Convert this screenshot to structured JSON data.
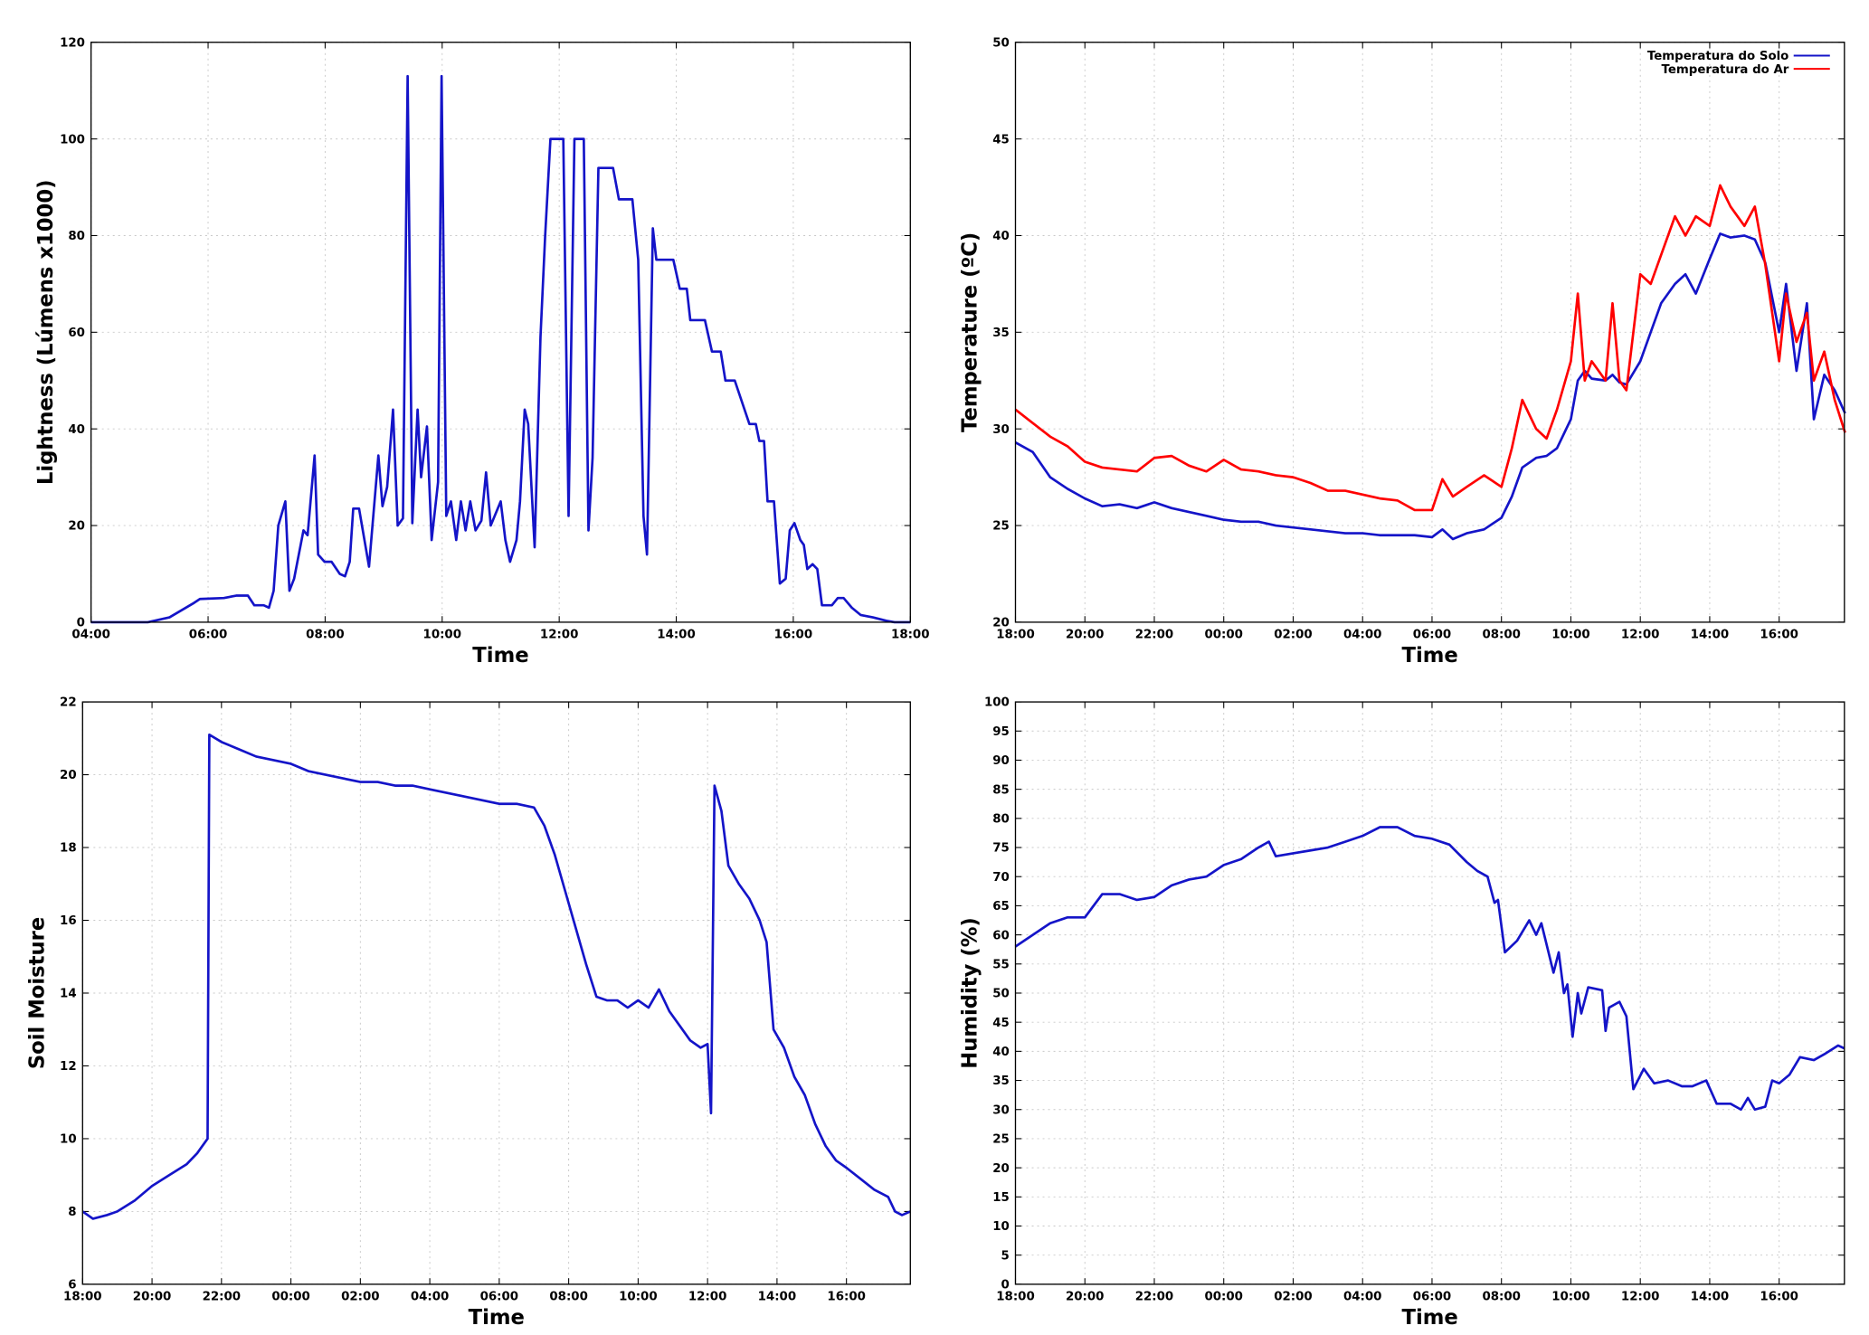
{
  "chart_data": [
    {
      "type": "line",
      "xlabel": "Time",
      "ylabel": "Lightness (Lúmens x1000)",
      "grid": true,
      "xlim": [
        4,
        18
      ],
      "ylim": [
        0,
        120
      ],
      "xticks": [
        {
          "value": 4,
          "label": "04:00"
        },
        {
          "value": 6,
          "label": "06:00"
        },
        {
          "value": 8,
          "label": "08:00"
        },
        {
          "value": 10,
          "label": "10:00"
        },
        {
          "value": 12,
          "label": "12:00"
        },
        {
          "value": 14,
          "label": "14:00"
        },
        {
          "value": 16,
          "label": "16:00"
        },
        {
          "value": 18,
          "label": "18:00"
        }
      ],
      "yticks": [
        0,
        20,
        40,
        60,
        80,
        100,
        120
      ],
      "x": [
        4.0,
        4.97,
        5.34,
        5.55,
        5.76,
        5.86,
        6.27,
        6.48,
        6.68,
        6.79,
        6.95,
        7.04,
        7.12,
        7.2,
        7.32,
        7.39,
        7.47,
        7.63,
        7.7,
        7.82,
        7.88,
        7.99,
        8.11,
        8.25,
        8.34,
        8.42,
        8.48,
        8.58,
        8.75,
        8.91,
        8.98,
        9.06,
        9.16,
        9.24,
        9.33,
        9.41,
        9.49,
        9.58,
        9.64,
        9.74,
        9.82,
        9.93,
        9.99,
        10.07,
        10.15,
        10.24,
        10.32,
        10.4,
        10.48,
        10.57,
        10.67,
        10.75,
        10.83,
        11.0,
        11.08,
        11.16,
        11.27,
        11.33,
        11.41,
        11.47,
        11.58,
        11.68,
        11.76,
        11.85,
        12.07,
        12.16,
        12.26,
        12.42,
        12.5,
        12.57,
        12.67,
        12.92,
        13.02,
        13.25,
        13.35,
        13.44,
        13.5,
        13.6,
        13.66,
        13.95,
        14.06,
        14.18,
        14.24,
        14.49,
        14.61,
        14.76,
        14.84,
        15.0,
        15.25,
        15.36,
        15.42,
        15.5,
        15.56,
        15.67,
        15.77,
        15.87,
        15.94,
        16.02,
        16.12,
        16.18,
        16.24,
        16.33,
        16.41,
        16.49,
        16.66,
        16.76,
        16.86,
        17.0,
        17.15,
        17.36,
        17.59,
        17.73,
        18.0
      ],
      "series": [
        {
          "color": "#1414c8",
          "values": [
            0,
            0,
            1,
            2.5,
            4,
            4.8,
            5,
            5.5,
            5.5,
            3.5,
            3.5,
            3,
            6.5,
            20,
            25,
            6.5,
            9,
            19,
            18,
            34.5,
            14,
            12.5,
            12.5,
            10,
            9.5,
            12.5,
            23.5,
            23.5,
            11.5,
            34.5,
            24,
            28,
            44,
            20,
            21.5,
            113,
            20.5,
            44,
            30,
            40.5,
            17,
            29,
            113,
            22,
            25,
            17,
            25,
            19,
            25,
            19,
            21,
            31,
            20,
            25,
            17,
            12.5,
            17,
            25,
            44,
            41,
            15.5,
            59,
            80,
            100,
            100,
            22,
            100,
            100,
            19,
            34,
            94,
            94,
            87.5,
            87.5,
            75,
            22,
            14,
            81.5,
            75,
            75,
            69,
            69,
            62.5,
            62.5,
            56,
            56,
            50,
            50,
            41,
            41,
            37.5,
            37.5,
            25,
            25,
            8,
            9,
            19,
            20.5,
            17,
            16,
            11,
            12,
            11,
            3.5,
            3.5,
            5,
            5,
            3,
            1.5,
            1,
            0.3,
            0,
            0
          ]
        }
      ]
    },
    {
      "type": "line",
      "xlabel": "Time",
      "ylabel": "Temperature (ºC)",
      "grid": true,
      "legend": "upper right",
      "xlim": [
        18,
        41.88
      ],
      "ylim": [
        20,
        50
      ],
      "xticks": [
        {
          "value": 18,
          "label": "18:00"
        },
        {
          "value": 20,
          "label": "20:00"
        },
        {
          "value": 22,
          "label": "22:00"
        },
        {
          "value": 24,
          "label": "00:00"
        },
        {
          "value": 26,
          "label": "02:00"
        },
        {
          "value": 28,
          "label": "04:00"
        },
        {
          "value": 30,
          "label": "06:00"
        },
        {
          "value": 32,
          "label": "08:00"
        },
        {
          "value": 34,
          "label": "10:00"
        },
        {
          "value": 36,
          "label": "12:00"
        },
        {
          "value": 38,
          "label": "14:00"
        },
        {
          "value": 40,
          "label": "16:00"
        }
      ],
      "yticks": [
        20,
        25,
        30,
        35,
        40,
        45,
        50
      ],
      "x": [
        18,
        18.5,
        19,
        19.5,
        20,
        20.5,
        21,
        21.5,
        22,
        22.5,
        23,
        23.5,
        24,
        24.5,
        25,
        25.5,
        26,
        26.5,
        27,
        27.5,
        28,
        28.5,
        29,
        29.5,
        30,
        30.3,
        30.6,
        31,
        31.5,
        32,
        32.3,
        32.6,
        33,
        33.3,
        33.6,
        34,
        34.2,
        34.4,
        34.6,
        35,
        35.2,
        35.4,
        35.6,
        36,
        36.3,
        36.6,
        37,
        37.3,
        37.6,
        38,
        38.3,
        38.6,
        39,
        39.3,
        39.6,
        40,
        40.2,
        40.5,
        40.8,
        41,
        41.3,
        41.6,
        41.9
      ],
      "series": [
        {
          "name": "Temperatura do Solo",
          "color": "#1414c8",
          "values": [
            29.3,
            28.8,
            27.5,
            26.9,
            26.4,
            26.0,
            26.1,
            25.9,
            26.2,
            25.9,
            25.7,
            25.5,
            25.3,
            25.2,
            25.2,
            25.0,
            24.9,
            24.8,
            24.7,
            24.6,
            24.6,
            24.5,
            24.5,
            24.5,
            24.4,
            24.8,
            24.3,
            24.6,
            24.8,
            25.4,
            26.5,
            28.0,
            28.5,
            28.6,
            29.0,
            30.5,
            32.5,
            33.0,
            32.6,
            32.5,
            32.8,
            32.4,
            32.3,
            33.5,
            35.0,
            36.5,
            37.5,
            38.0,
            37.0,
            38.8,
            40.1,
            39.9,
            40.0,
            39.8,
            38.6,
            35.0,
            37.5,
            33.0,
            36.5,
            30.5,
            32.8,
            32.0,
            30.8
          ]
        },
        {
          "name": "Temperatura do Ar",
          "color": "#ff0000",
          "values": [
            31.0,
            30.3,
            29.6,
            29.1,
            28.3,
            28.0,
            27.9,
            27.8,
            28.5,
            28.6,
            28.1,
            27.8,
            28.4,
            27.9,
            27.8,
            27.6,
            27.5,
            27.2,
            26.8,
            26.8,
            26.6,
            26.4,
            26.3,
            25.8,
            25.8,
            27.4,
            26.5,
            27.0,
            27.6,
            27.0,
            29.0,
            31.5,
            30.0,
            29.5,
            31.0,
            33.5,
            37.0,
            32.5,
            33.5,
            32.5,
            36.5,
            32.5,
            32.0,
            38.0,
            37.5,
            39.0,
            41.0,
            40.0,
            41.0,
            40.5,
            42.6,
            41.5,
            40.5,
            41.5,
            38.5,
            33.5,
            37.0,
            34.5,
            36.0,
            32.5,
            34.0,
            31.5,
            29.8
          ]
        }
      ]
    },
    {
      "type": "line",
      "xlabel": "Time",
      "ylabel": "Soil Moisture",
      "grid": true,
      "xlim": [
        18,
        41.84
      ],
      "ylim": [
        6,
        22
      ],
      "xticks": [
        {
          "value": 18,
          "label": "18:00"
        },
        {
          "value": 20,
          "label": "20:00"
        },
        {
          "value": 22,
          "label": "22:00"
        },
        {
          "value": 24,
          "label": "00:00"
        },
        {
          "value": 26,
          "label": "02:00"
        },
        {
          "value": 28,
          "label": "04:00"
        },
        {
          "value": 30,
          "label": "06:00"
        },
        {
          "value": 32,
          "label": "08:00"
        },
        {
          "value": 34,
          "label": "10:00"
        },
        {
          "value": 36,
          "label": "12:00"
        },
        {
          "value": 38,
          "label": "14:00"
        },
        {
          "value": 40,
          "label": "16:00"
        }
      ],
      "yticks": [
        6,
        8,
        10,
        12,
        14,
        16,
        18,
        20,
        22
      ],
      "x": [
        18,
        18.3,
        18.7,
        19,
        19.5,
        20,
        20.5,
        21,
        21.3,
        21.6,
        21.65,
        22,
        22.5,
        23,
        23.5,
        24,
        24.5,
        25,
        25.5,
        26,
        26.5,
        27,
        27.5,
        28,
        28.5,
        29,
        29.5,
        30,
        30.5,
        31,
        31.3,
        31.6,
        31.9,
        32.2,
        32.5,
        32.8,
        33.1,
        33.4,
        33.7,
        34,
        34.3,
        34.6,
        34.9,
        35.2,
        35.5,
        35.8,
        36.0,
        36.1,
        36.2,
        36.4,
        36.6,
        36.9,
        37.2,
        37.5,
        37.7,
        37.9,
        38.2,
        38.5,
        38.8,
        39.1,
        39.4,
        39.7,
        40,
        40.4,
        40.8,
        41.2,
        41.4,
        41.6,
        41.84
      ],
      "series": [
        {
          "color": "#1414c8",
          "values": [
            8.0,
            7.8,
            7.9,
            8.0,
            8.3,
            8.7,
            9.0,
            9.3,
            9.6,
            10.0,
            21.1,
            20.9,
            20.7,
            20.5,
            20.4,
            20.3,
            20.1,
            20.0,
            19.9,
            19.8,
            19.8,
            19.7,
            19.7,
            19.6,
            19.5,
            19.4,
            19.3,
            19.2,
            19.2,
            19.1,
            18.6,
            17.8,
            16.8,
            15.8,
            14.8,
            13.9,
            13.8,
            13.8,
            13.6,
            13.8,
            13.6,
            14.1,
            13.5,
            13.1,
            12.7,
            12.5,
            12.6,
            10.7,
            19.7,
            19.0,
            17.5,
            17.0,
            16.6,
            16.0,
            15.4,
            13.0,
            12.5,
            11.7,
            11.2,
            10.4,
            9.8,
            9.4,
            9.2,
            8.9,
            8.6,
            8.4,
            8.0,
            7.9,
            8.0
          ]
        }
      ]
    },
    {
      "type": "line",
      "xlabel": "Time",
      "ylabel": "Humidity (%)",
      "grid": true,
      "xlim": [
        18,
        41.88
      ],
      "ylim": [
        0,
        100
      ],
      "xticks": [
        {
          "value": 18,
          "label": "18:00"
        },
        {
          "value": 20,
          "label": "20:00"
        },
        {
          "value": 22,
          "label": "22:00"
        },
        {
          "value": 24,
          "label": "00:00"
        },
        {
          "value": 26,
          "label": "02:00"
        },
        {
          "value": 28,
          "label": "04:00"
        },
        {
          "value": 30,
          "label": "06:00"
        },
        {
          "value": 32,
          "label": "08:00"
        },
        {
          "value": 34,
          "label": "10:00"
        },
        {
          "value": 36,
          "label": "12:00"
        },
        {
          "value": 38,
          "label": "14:00"
        },
        {
          "value": 40,
          "label": "16:00"
        }
      ],
      "yticks": [
        0,
        5,
        10,
        15,
        20,
        25,
        30,
        35,
        40,
        45,
        50,
        55,
        60,
        65,
        70,
        75,
        80,
        85,
        90,
        95,
        100
      ],
      "x": [
        18,
        18.5,
        19,
        19.5,
        20,
        20.5,
        21,
        21.5,
        22,
        22.5,
        23,
        23.5,
        24,
        24.5,
        25,
        25.3,
        25.5,
        26,
        26.5,
        27,
        27.5,
        28,
        28.5,
        29,
        29.5,
        30,
        30.5,
        31,
        31.3,
        31.6,
        31.8,
        31.9,
        32.1,
        32.45,
        32.8,
        33,
        33.15,
        33.5,
        33.65,
        33.8,
        33.9,
        34.05,
        34.2,
        34.3,
        34.5,
        34.9,
        35,
        35.1,
        35.4,
        35.6,
        35.8,
        36.1,
        36.4,
        36.8,
        37.2,
        37.5,
        37.9,
        38.2,
        38.6,
        38.9,
        39.1,
        39.3,
        39.6,
        39.8,
        40,
        40.3,
        40.6,
        41,
        41.3,
        41.7,
        41.88
      ],
      "series": [
        {
          "color": "#1414c8",
          "values": [
            58,
            60,
            62,
            63,
            63,
            67,
            67,
            66,
            66.5,
            68.5,
            69.5,
            70,
            72,
            73,
            75,
            76,
            73.5,
            74,
            74.5,
            75,
            76,
            77,
            78.5,
            78.5,
            77,
            76.5,
            75.5,
            72.5,
            71,
            70,
            65.5,
            66,
            57,
            59,
            62.5,
            60,
            62,
            53.5,
            57,
            50,
            51.5,
            42.5,
            50,
            46.5,
            51,
            50.5,
            43.5,
            47.5,
            48.5,
            46,
            33.5,
            37,
            34.5,
            35,
            34,
            34,
            35,
            31,
            31,
            30,
            32,
            30,
            30.5,
            35,
            34.5,
            36,
            39,
            38.5,
            39.5,
            41,
            40.5
          ]
        }
      ]
    }
  ]
}
